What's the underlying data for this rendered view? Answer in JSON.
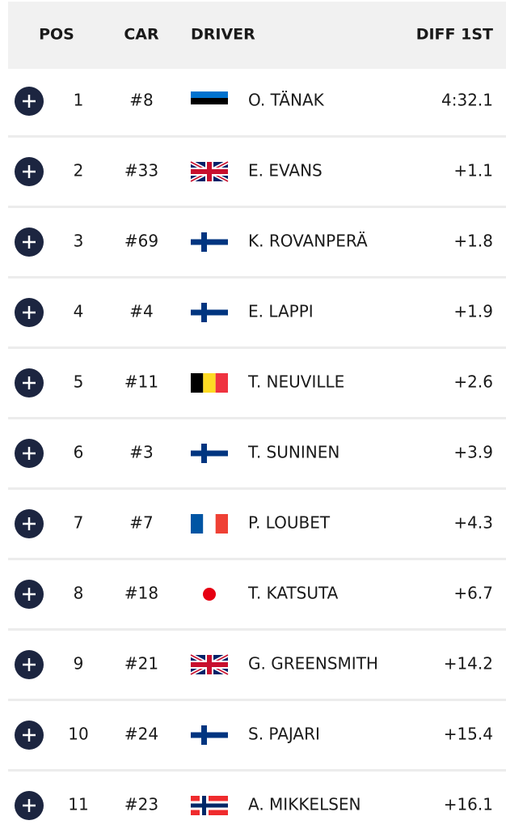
{
  "table": {
    "header": [
      "POS",
      "CAR",
      "DRIVER",
      "DIFF 1ST"
    ],
    "rows": [
      [
        "1",
        "#8",
        "O. TÄNAK",
        "4:32.1"
      ],
      [
        "2",
        "#33",
        "E. EVANS",
        "+1.1"
      ],
      [
        "3",
        "#69",
        "K. ROVANPERÄ",
        "+1.8"
      ],
      [
        "4",
        "#4",
        "E. LAPPI",
        "+1.9"
      ],
      [
        "5",
        "#11",
        "T. NEUVILLE",
        "+2.6"
      ],
      [
        "6",
        "#3",
        "T. SUNINEN",
        "+3.9"
      ],
      [
        "7",
        "#7",
        "P. LOUBET",
        "+4.3"
      ],
      [
        "8",
        "#18",
        "T. KATSUTA",
        "+6.7"
      ],
      [
        "9",
        "#21",
        "G. GREENSMITH",
        "+14.2"
      ],
      [
        "10",
        "#24",
        "S. PAJARI",
        "+15.4"
      ],
      [
        "11",
        "#23",
        "A. MIKKELSEN",
        "+16.1"
      ]
    ]
  }
}
